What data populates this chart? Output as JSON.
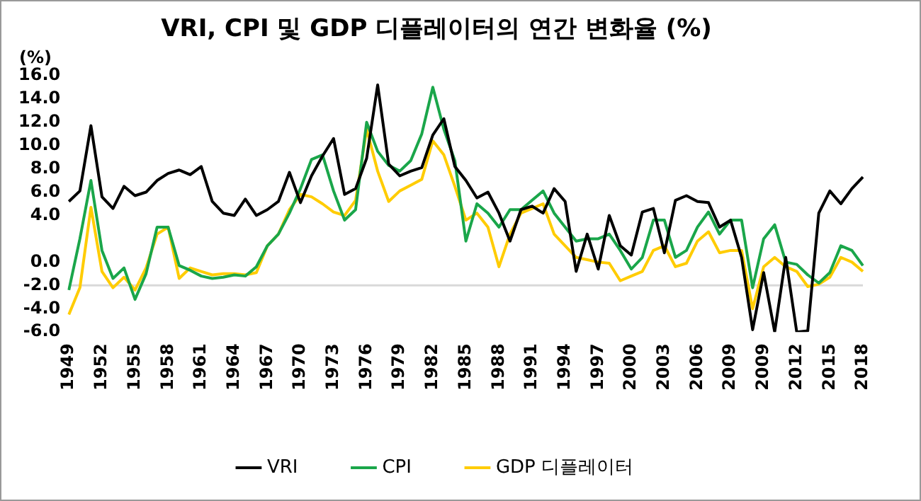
{
  "chart_data": {
    "type": "line",
    "title": "VRI, CPI 및 GDP 디플레이터의 연간 변화율 (%)",
    "ylabel": "(%)",
    "categories": [
      "1949",
      null,
      null,
      "1952",
      null,
      null,
      "1955",
      null,
      null,
      "1958",
      null,
      null,
      "1961",
      null,
      null,
      "1964",
      null,
      null,
      "1967",
      null,
      null,
      "1970",
      null,
      null,
      "1973",
      null,
      null,
      "1976",
      null,
      null,
      "1979",
      null,
      null,
      "1982",
      null,
      null,
      "1985",
      null,
      null,
      "1988",
      null,
      null,
      "1991",
      null,
      null,
      "1994",
      null,
      null,
      "1997",
      null,
      null,
      "2000",
      null,
      null,
      "2003",
      null,
      null,
      "2006",
      null,
      null,
      "2009",
      null,
      null,
      "2009",
      null,
      null,
      "2012",
      null,
      null,
      "2015",
      null,
      null,
      "2018"
    ],
    "series": [
      {
        "name": "VRI",
        "color": "#000000",
        "values": [
          5.2,
          6.1,
          11.7,
          5.6,
          4.6,
          6.5,
          5.7,
          6.0,
          7.0,
          7.6,
          7.9,
          7.5,
          8.2,
          5.2,
          4.2,
          4.0,
          5.4,
          4.0,
          4.5,
          5.2,
          7.7,
          5.1,
          7.4,
          9.1,
          10.6,
          5.8,
          6.3,
          8.9,
          15.2,
          8.4,
          7.4,
          7.8,
          8.1,
          10.9,
          12.3,
          8.2,
          7.0,
          5.5,
          6.0,
          4.2,
          1.8,
          4.5,
          4.8,
          4.2,
          6.3,
          5.2,
          -0.8,
          2.4,
          -0.6,
          4.0,
          1.4,
          0.6,
          4.3,
          4.6,
          0.8,
          5.3,
          5.7,
          5.2,
          5.1,
          3.0,
          3.6,
          0.4,
          -5.8,
          -0.9,
          -6.0,
          0.4,
          -6.0,
          -5.9,
          4.2,
          6.1,
          5.0,
          6.3,
          7.3
        ]
      },
      {
        "name": "CPI",
        "color": "#1aa64a",
        "values": [
          -2.4,
          2.0,
          7.0,
          1.0,
          -1.4,
          -0.5,
          -3.2,
          -1.0,
          3.0,
          3.0,
          -0.3,
          -0.7,
          -1.2,
          -1.4,
          -1.3,
          -1.1,
          -1.2,
          -0.4,
          1.4,
          2.4,
          4.2,
          6.3,
          8.8,
          9.2,
          6.1,
          3.6,
          4.5,
          12.0,
          9.5,
          8.3,
          7.8,
          8.7,
          11.0,
          15.0,
          11.4,
          8.7,
          1.8,
          5.0,
          4.2,
          3.0,
          4.5,
          4.5,
          5.3,
          6.1,
          4.2,
          3.0,
          1.8,
          2.0,
          2.0,
          2.4,
          1.0,
          -0.6,
          0.4,
          3.6,
          3.6,
          0.4,
          1.0,
          3.0,
          4.3,
          2.4,
          3.6,
          3.6,
          -2.2,
          2.0,
          3.2,
          0.0,
          -0.2,
          -1.1,
          -1.8,
          -0.9,
          1.4,
          1.0,
          -0.3
        ]
      },
      {
        "name": "GDP 디플레이터",
        "color": "#ffcc00",
        "values": [
          -4.5,
          -2.2,
          4.7,
          -0.8,
          -2.2,
          -1.3,
          -2.4,
          -0.5,
          2.4,
          3.0,
          -1.4,
          -0.5,
          -0.8,
          -1.1,
          -1.0,
          -1.0,
          -1.1,
          -0.9,
          1.4,
          2.4,
          4.5,
          5.8,
          5.6,
          5.0,
          4.3,
          4.0,
          5.3,
          11.4,
          7.8,
          5.2,
          6.1,
          6.6,
          7.1,
          10.4,
          9.2,
          6.5,
          3.6,
          4.2,
          3.0,
          -0.4,
          2.4,
          4.2,
          4.6,
          5.0,
          2.4,
          1.4,
          0.4,
          0.2,
          0.0,
          -0.1,
          -1.6,
          -1.2,
          -0.8,
          1.0,
          1.4,
          -0.4,
          -0.1,
          1.8,
          2.6,
          0.8,
          1.0,
          1.0,
          -4.0,
          -0.4,
          0.4,
          -0.4,
          -0.8,
          -2.1,
          -1.9,
          -1.3,
          0.4,
          0.0,
          -0.8
        ]
      }
    ],
    "ylim": [
      -6,
      16
    ],
    "yticks": [
      {
        "value": 16,
        "label": "16.0"
      },
      {
        "value": 14,
        "label": "14.0"
      },
      {
        "value": 12,
        "label": "12.0"
      },
      {
        "value": 10,
        "label": "10.0"
      },
      {
        "value": 8,
        "label": "8.0"
      },
      {
        "value": 6,
        "label": "6.0"
      },
      {
        "value": 4,
        "label": "4.0"
      },
      {
        "value": 0,
        "label": "0.0"
      },
      {
        "value": -2,
        "label": "-2.0"
      },
      {
        "value": -4,
        "label": "-4.0"
      },
      {
        "value": -6,
        "label": "-6.0"
      }
    ],
    "ref_lines": [
      {
        "axis": "y",
        "value": -2,
        "color": "#d9d9d9"
      }
    ],
    "grid": false,
    "legend": "bottom",
    "marker": "none",
    "line_style": "solid"
  }
}
